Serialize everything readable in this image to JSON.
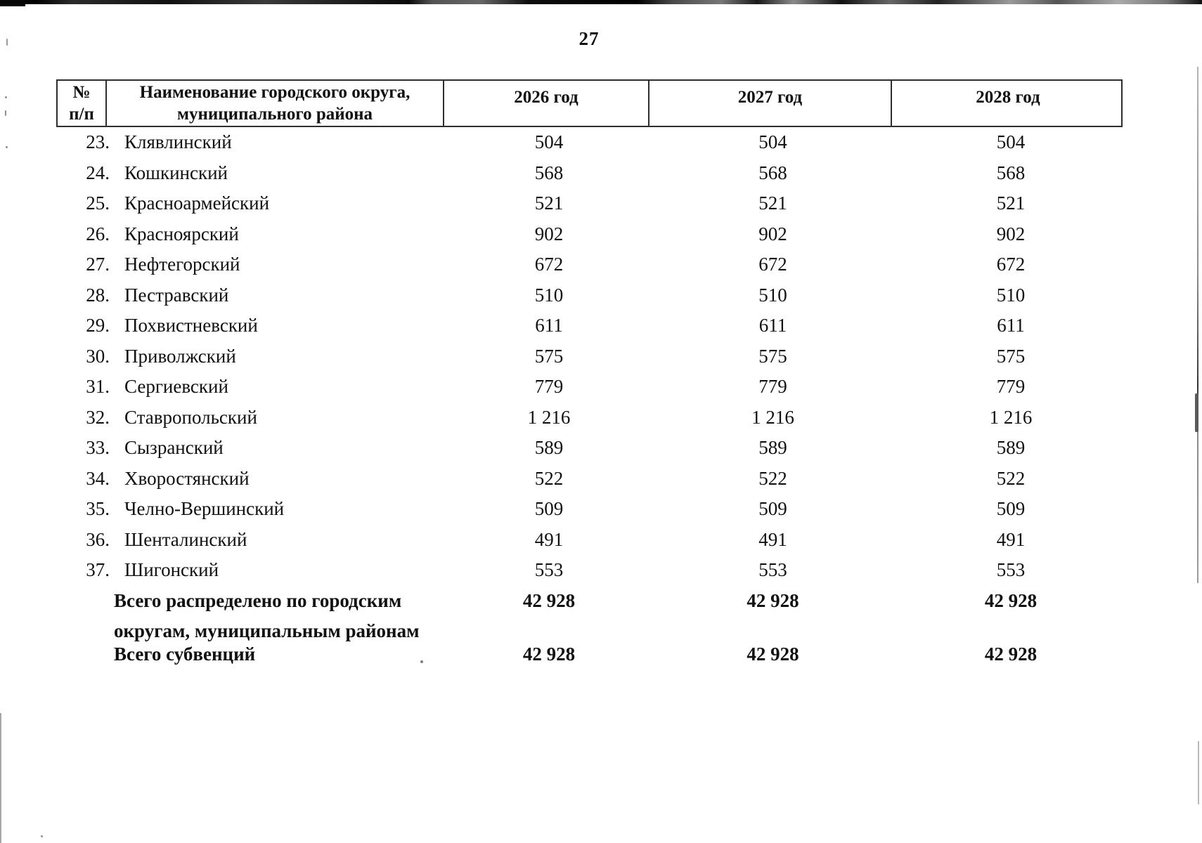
{
  "page": {
    "number": "27"
  },
  "colors": {
    "ink": "#111111",
    "border": "#2e2e2e",
    "paper": "#ffffff"
  },
  "table": {
    "headers": {
      "num_line1": "№",
      "num_line2": "п/п",
      "name_line1": "Наименование городского округа,",
      "name_line2": "муниципального района",
      "year_2026": "2026 год",
      "year_2027": "2027 год",
      "year_2028": "2028 год"
    },
    "rows": [
      {
        "num": "23.",
        "name": "Клявлинский",
        "y2026": "504",
        "y2027": "504",
        "y2028": "504"
      },
      {
        "num": "24.",
        "name": "Кошкинский",
        "y2026": "568",
        "y2027": "568",
        "y2028": "568"
      },
      {
        "num": "25.",
        "name": "Красноармейский",
        "y2026": "521",
        "y2027": "521",
        "y2028": "521"
      },
      {
        "num": "26.",
        "name": "Красноярский",
        "y2026": "902",
        "y2027": "902",
        "y2028": "902"
      },
      {
        "num": "27.",
        "name": "Нефтегорский",
        "y2026": "672",
        "y2027": "672",
        "y2028": "672"
      },
      {
        "num": "28.",
        "name": "Пестравский",
        "y2026": "510",
        "y2027": "510",
        "y2028": "510"
      },
      {
        "num": "29.",
        "name": "Похвистневский",
        "y2026": "611",
        "y2027": "611",
        "y2028": "611"
      },
      {
        "num": "30.",
        "name": "Приволжский",
        "y2026": "575",
        "y2027": "575",
        "y2028": "575"
      },
      {
        "num": "31.",
        "name": "Сергиевский",
        "y2026": "779",
        "y2027": "779",
        "y2028": "779"
      },
      {
        "num": "32.",
        "name": "Ставропольский",
        "y2026": "1 216",
        "y2027": "1 216",
        "y2028": "1 216"
      },
      {
        "num": "33.",
        "name": "Сызранский",
        "y2026": "589",
        "y2027": "589",
        "y2028": "589"
      },
      {
        "num": "34.",
        "name": "Хворостянский",
        "y2026": "522",
        "y2027": "522",
        "y2028": "522"
      },
      {
        "num": "35.",
        "name": "Челно-Вершинский",
        "y2026": "509",
        "y2027": "509",
        "y2028": "509"
      },
      {
        "num": "36.",
        "name": "Шенталинский",
        "y2026": "491",
        "y2027": "491",
        "y2028": "491"
      },
      {
        "num": "37.",
        "name": "Шигонский",
        "y2026": "553",
        "y2027": "553",
        "y2028": "553"
      }
    ],
    "totals": [
      {
        "label": "Всего распределено по городским округам, муниципальным районам",
        "y2026": "42 928",
        "y2027": "42 928",
        "y2028": "42 928"
      },
      {
        "label": "Всего субвенций",
        "y2026": "42 928",
        "y2027": "42 928",
        "y2028": "42 928"
      }
    ]
  }
}
